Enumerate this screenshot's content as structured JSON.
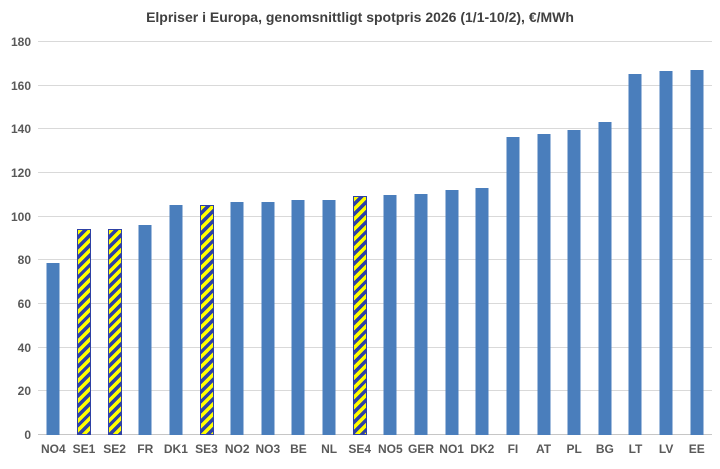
{
  "chart_data": {
    "type": "bar",
    "title": "Elpriser i Europa, genomsnittligt spotpris 2026 (1/1-10/2), €/MWh",
    "categories": [
      "NO4",
      "SE1",
      "SE2",
      "FR",
      "DK1",
      "SE3",
      "NO2",
      "NO3",
      "BE",
      "NL",
      "SE4",
      "NO5",
      "GER",
      "NO1",
      "DK2",
      "FI",
      "AT",
      "PL",
      "BG",
      "LT",
      "LV",
      "EE"
    ],
    "values": [
      79,
      94.5,
      94.5,
      96,
      105.5,
      105.5,
      106.5,
      106.5,
      107.5,
      107.5,
      109.5,
      110,
      110.5,
      112,
      113,
      136.5,
      138,
      139.5,
      143.5,
      165.5,
      166.5,
      167
    ],
    "highlighted_categories": [
      "SE1",
      "SE2",
      "SE3",
      "SE4"
    ],
    "highlight_style": "yellow-blue-diagonal-hatch",
    "xlabel": "",
    "ylabel": "",
    "ylim": [
      0,
      180
    ],
    "ytick_step": 20,
    "yticks": [
      0,
      20,
      40,
      60,
      80,
      100,
      120,
      140,
      160,
      180
    ],
    "grid": true,
    "legend": "none",
    "colors": {
      "bar": "#4a7ebc",
      "highlight_fill": "#ffff00",
      "highlight_stripe": "#2e41a5",
      "gridline": "#d9d9d9",
      "axis_line": "#c6c6c6",
      "title_text": "#404040",
      "tick_text": "#595959"
    }
  }
}
